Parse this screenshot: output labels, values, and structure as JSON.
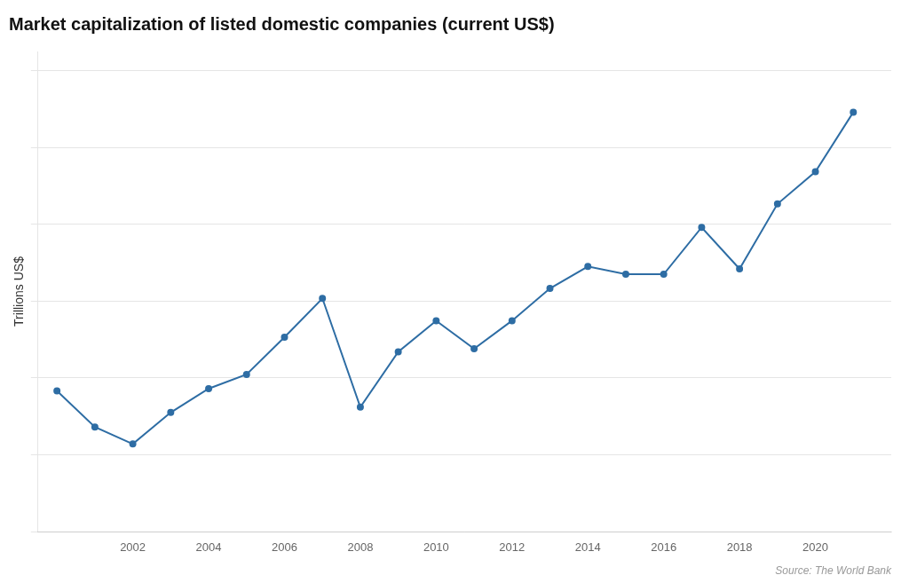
{
  "chart_data": {
    "type": "line",
    "title": "Market capitalization of listed domestic companies (current US$)",
    "ylabel": "Trillions US$",
    "annotation": "Source: The World Bank",
    "x": [
      2000,
      2001,
      2002,
      2003,
      2004,
      2005,
      2006,
      2007,
      2008,
      2009,
      2010,
      2011,
      2012,
      2013,
      2014,
      2015,
      2016,
      2017,
      2018,
      2019,
      2020,
      2021
    ],
    "values": [
      36.6,
      27.2,
      22.8,
      31.0,
      37.2,
      40.9,
      50.6,
      60.7,
      32.4,
      46.8,
      54.9,
      47.6,
      54.9,
      63.3,
      69.0,
      67.0,
      67.0,
      79.2,
      68.4,
      85.3,
      93.7,
      109.2
    ],
    "color": "#2e6da4",
    "marker": "circle",
    "xlim": [
      1999.5,
      2022.0
    ],
    "xticks": [
      2002,
      2004,
      2006,
      2008,
      2010,
      2012,
      2014,
      2016,
      2018,
      2020
    ],
    "ylim": [
      0,
      125
    ],
    "yticks": [
      0,
      20,
      40,
      60,
      80,
      100,
      120
    ],
    "grid": "y",
    "tick_labels": "x"
  }
}
